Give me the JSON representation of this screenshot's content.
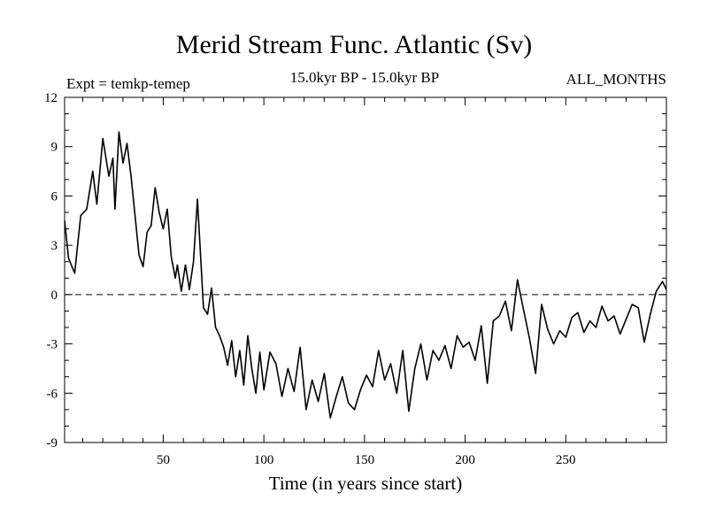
{
  "chart_data": {
    "type": "line",
    "title": "Merid Stream Func. Atlantic (Sv)",
    "subtitle_left": "Expt = temkp-temep",
    "subtitle_center": "15.0kyr BP - 15.0kyr BP",
    "subtitle_right": "ALL_MONTHS",
    "xlabel": "Time (in years since start)",
    "ylabel": "",
    "xlim": [
      1,
      300
    ],
    "ylim": [
      -9,
      12
    ],
    "xticks": [
      50,
      100,
      150,
      200,
      250
    ],
    "yticks": [
      -9,
      -6,
      -3,
      0,
      3,
      6,
      9,
      12
    ],
    "reference_line": 0,
    "series": [
      {
        "name": "Merid Stream Func. Atlantic",
        "x": [
          1,
          3,
          6,
          9,
          12,
          15,
          17,
          20,
          23,
          25,
          26,
          28,
          30,
          32,
          34,
          36,
          38,
          40,
          42,
          44,
          46,
          48,
          50,
          52,
          54,
          56,
          57,
          59,
          61,
          63,
          65,
          67,
          70,
          72,
          74,
          76,
          78,
          80,
          82,
          84,
          86,
          88,
          90,
          92,
          94,
          96,
          98,
          100,
          103,
          106,
          109,
          112,
          115,
          118,
          121,
          124,
          127,
          130,
          133,
          136,
          139,
          142,
          145,
          148,
          151,
          154,
          157,
          160,
          163,
          166,
          169,
          172,
          175,
          178,
          181,
          184,
          187,
          190,
          193,
          196,
          199,
          202,
          205,
          208,
          211,
          214,
          217,
          220,
          223,
          226,
          229,
          232,
          235,
          238,
          241,
          244,
          247,
          250,
          253,
          256,
          259,
          262,
          265,
          268,
          271,
          274,
          277,
          280,
          283,
          286,
          289,
          292,
          295,
          298,
          300
        ],
        "values": [
          4.5,
          2.2,
          1.3,
          4.8,
          5.2,
          7.5,
          5.5,
          9.5,
          7.2,
          8.3,
          5.2,
          9.9,
          8.0,
          9.2,
          7.2,
          4.8,
          2.4,
          1.7,
          3.8,
          4.2,
          6.5,
          5.0,
          4.0,
          5.2,
          2.3,
          1.0,
          1.8,
          0.2,
          1.8,
          0.3,
          2.0,
          5.8,
          -0.8,
          -1.2,
          0.4,
          -2.0,
          -2.5,
          -3.2,
          -4.3,
          -2.8,
          -5.0,
          -3.4,
          -5.5,
          -2.5,
          -4.5,
          -6.0,
          -3.5,
          -5.8,
          -3.5,
          -4.2,
          -6.2,
          -4.5,
          -5.9,
          -3.2,
          -7.0,
          -5.2,
          -6.5,
          -4.8,
          -7.5,
          -6.2,
          -5.0,
          -6.6,
          -7.0,
          -5.8,
          -4.9,
          -5.6,
          -3.4,
          -5.2,
          -4.2,
          -6.0,
          -3.4,
          -7.1,
          -4.5,
          -3.0,
          -5.2,
          -3.4,
          -4.0,
          -3.1,
          -4.5,
          -2.5,
          -3.2,
          -2.9,
          -4.0,
          -1.9,
          -5.4,
          -1.6,
          -1.3,
          -0.4,
          -2.2,
          0.9,
          -0.9,
          -2.7,
          -4.8,
          -0.6,
          -2.1,
          -3.0,
          -2.2,
          -2.6,
          -1.4,
          -1.1,
          -2.3,
          -1.6,
          -2.0,
          -0.7,
          -1.6,
          -1.3,
          -2.4,
          -1.5,
          -0.6,
          -0.8,
          -2.9,
          -1.2,
          0.2,
          0.8,
          0.3
        ]
      }
    ]
  }
}
